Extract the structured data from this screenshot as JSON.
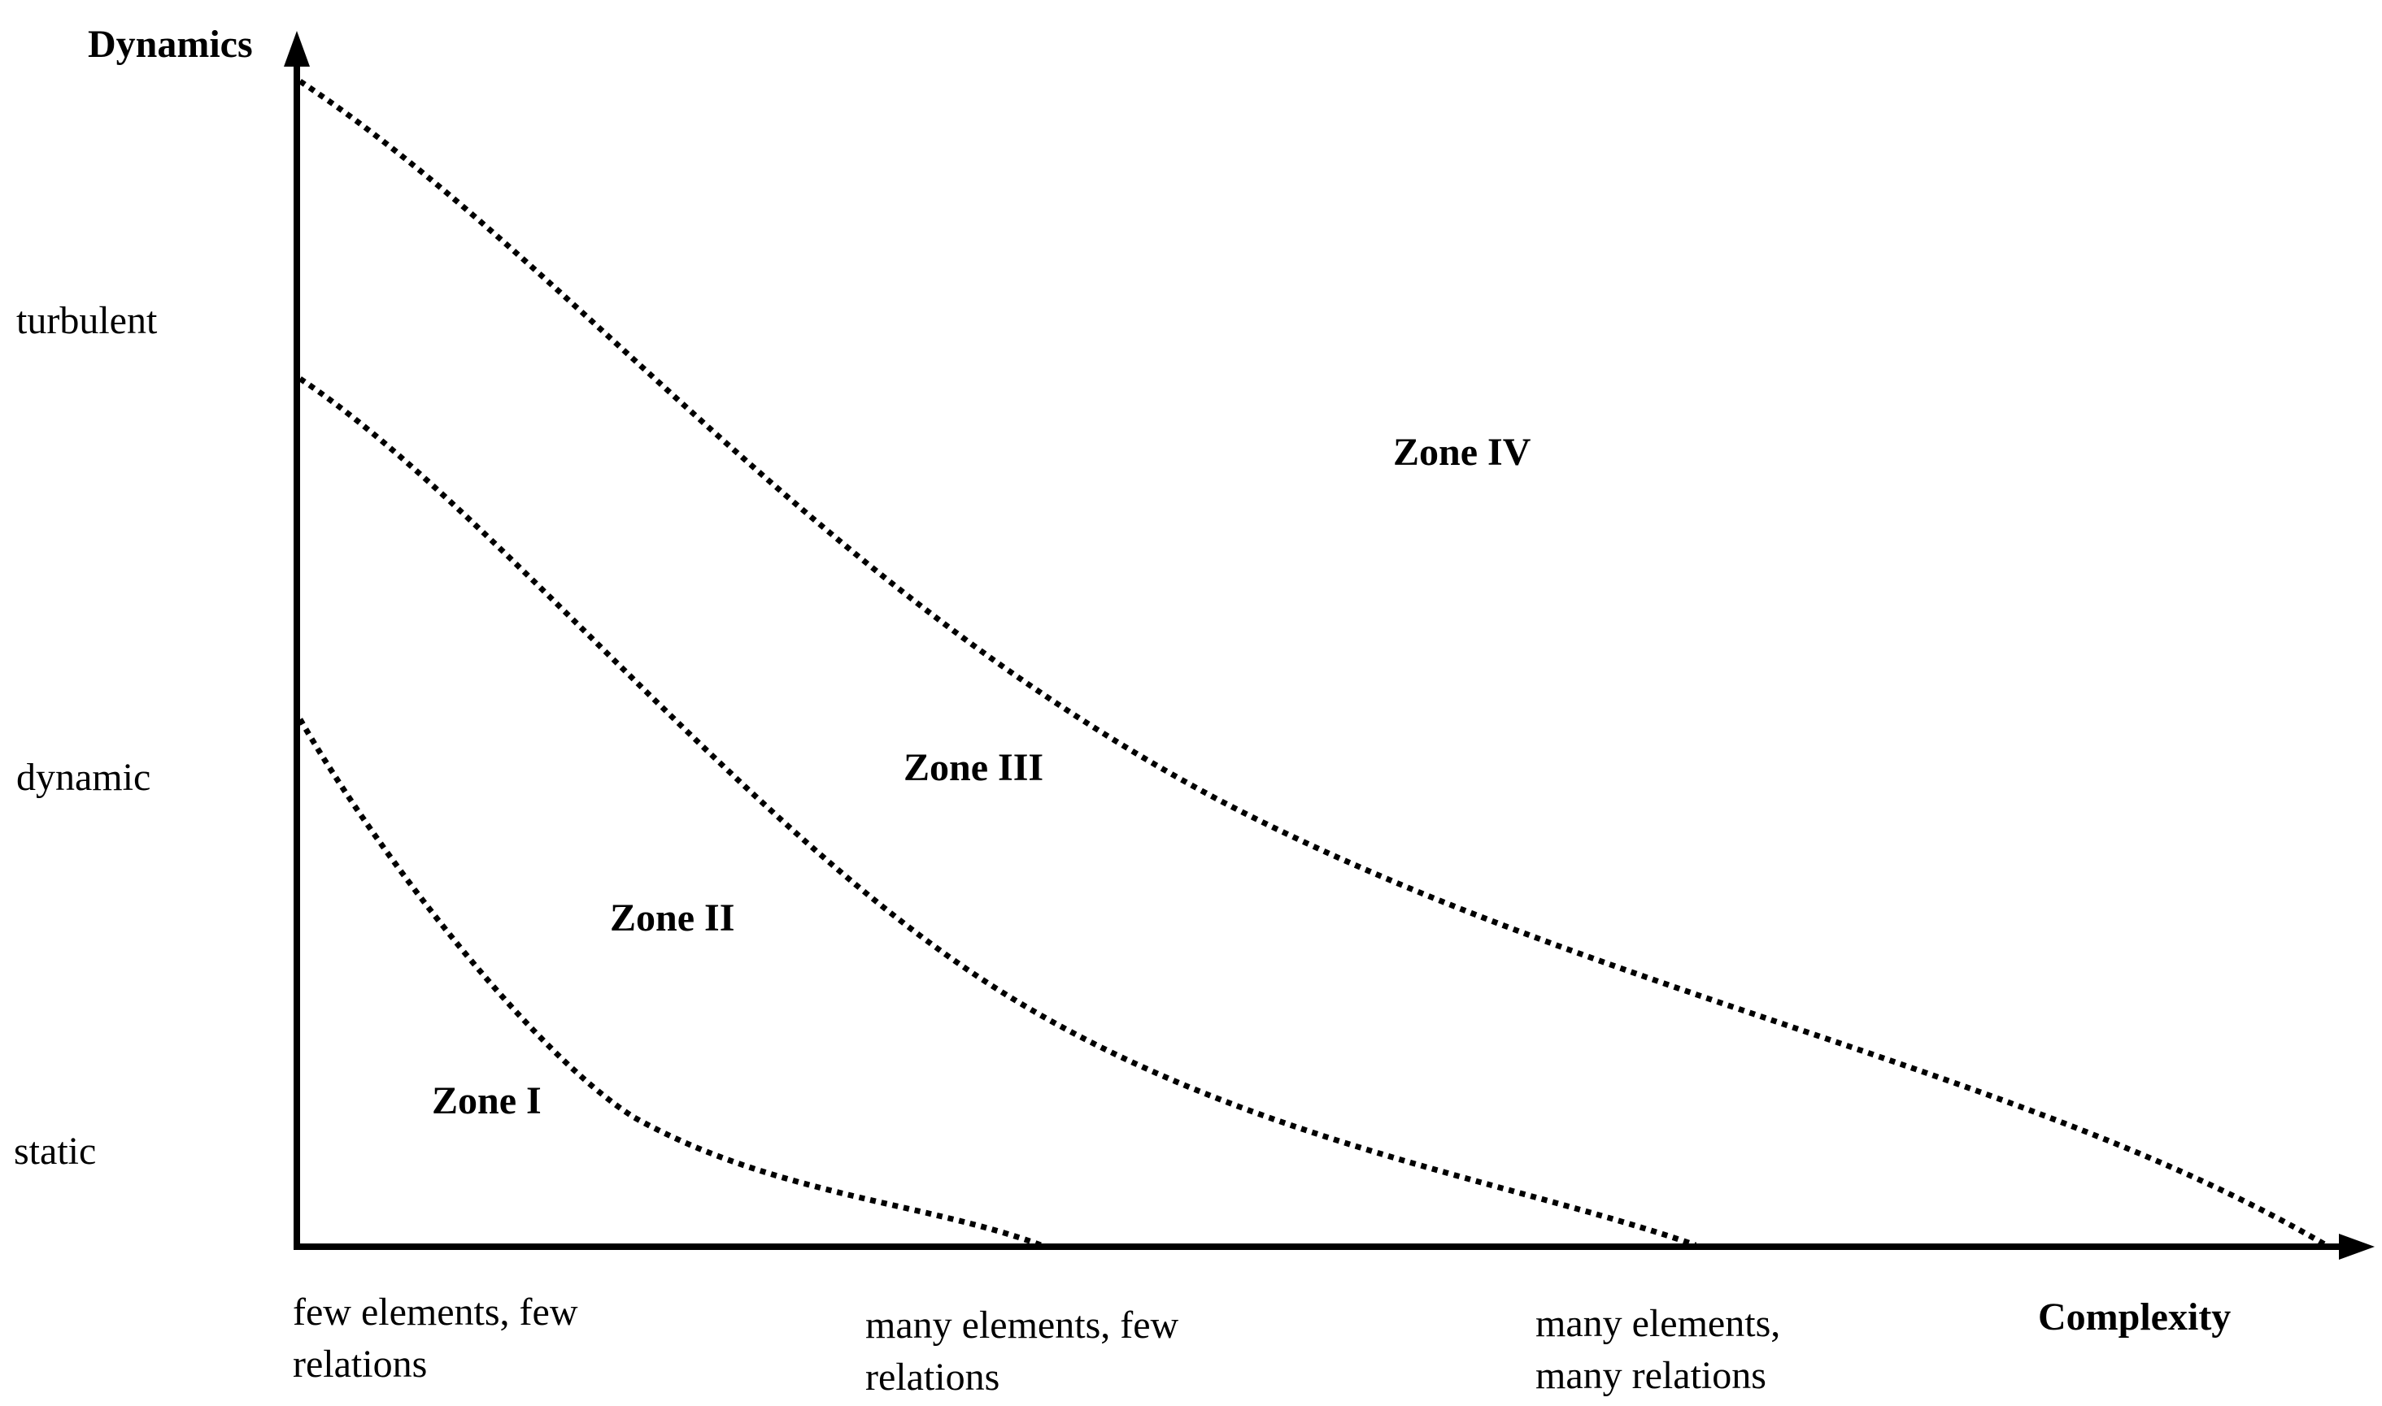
{
  "diagram": {
    "y_axis": {
      "title": "Dynamics",
      "levels": [
        "turbulent",
        "dynamic",
        "static"
      ]
    },
    "x_axis": {
      "title": "Complexity",
      "levels": [
        [
          "few elements, few",
          "relations"
        ],
        [
          "many elements, few",
          "relations"
        ],
        [
          "many elements,",
          "many relations"
        ]
      ]
    },
    "zones": [
      "Zone I",
      "Zone II",
      "Zone III",
      "Zone IV"
    ],
    "boundaries": [
      {
        "name": "zone-i-ii-boundary",
        "style": "dotted"
      },
      {
        "name": "zone-ii-iii-boundary",
        "style": "dotted"
      },
      {
        "name": "zone-iii-iv-boundary",
        "style": "dotted"
      }
    ],
    "colors": {
      "ink": "#000000",
      "background": "#ffffff"
    }
  }
}
